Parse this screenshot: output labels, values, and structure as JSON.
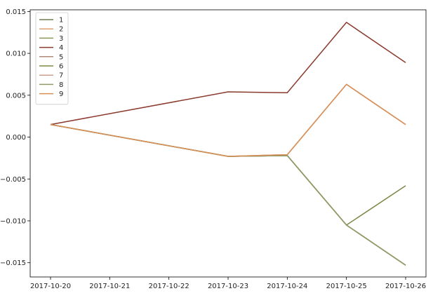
{
  "chart_data": {
    "type": "line",
    "title": "",
    "xlabel": "",
    "ylabel": "",
    "x": [
      "2017-10-20",
      "2017-10-21",
      "2017-10-22",
      "2017-10-23",
      "2017-10-24",
      "2017-10-25",
      "2017-10-26"
    ],
    "xlim": [
      "2017-10-20",
      "2017-10-26"
    ],
    "ylim": [
      -0.0167,
      0.0152
    ],
    "yticks": [
      -0.015,
      -0.01,
      -0.005,
      0.0,
      0.005,
      0.01,
      0.015
    ],
    "ytick_labels": [
      "−0.015",
      "−0.010",
      "−0.005",
      "0.000",
      "0.005",
      "0.010",
      "0.015"
    ],
    "grid": false,
    "legend_position": "top-left",
    "series": [
      {
        "name": "1",
        "color": "#6e7d4e",
        "points": [
          [
            "2017-10-20",
            0.0015
          ],
          [
            "2017-10-23",
            -0.0023
          ],
          [
            "2017-10-24",
            -0.0022
          ],
          [
            "2017-10-25",
            -0.0105
          ],
          [
            "2017-10-26",
            -0.0153
          ]
        ]
      },
      {
        "name": "2",
        "color": "#e0a070",
        "points": [
          [
            "2017-10-20",
            0.0015
          ],
          [
            "2017-10-23",
            -0.0023
          ],
          [
            "2017-10-24",
            -0.0021
          ],
          [
            "2017-10-25",
            0.0063
          ],
          [
            "2017-10-26",
            0.0015
          ]
        ]
      },
      {
        "name": "3",
        "color": "#8a9a5a",
        "points": [
          [
            "2017-10-20",
            0.0015
          ],
          [
            "2017-10-23",
            -0.0023
          ],
          [
            "2017-10-24",
            -0.0022
          ],
          [
            "2017-10-25",
            -0.0105
          ],
          [
            "2017-10-26",
            -0.0153
          ]
        ]
      },
      {
        "name": "4",
        "color": "#8b3a2e",
        "points": [
          [
            "2017-10-20",
            0.0015
          ],
          [
            "2017-10-23",
            0.0054
          ],
          [
            "2017-10-24",
            0.0053
          ],
          [
            "2017-10-25",
            0.0137
          ],
          [
            "2017-10-26",
            0.0089
          ]
        ]
      },
      {
        "name": "5",
        "color": "#b08a78",
        "points": [
          [
            "2017-10-20",
            0.0015
          ],
          [
            "2017-10-23",
            -0.0023
          ],
          [
            "2017-10-24",
            -0.0022
          ],
          [
            "2017-10-25",
            -0.0105
          ],
          [
            "2017-10-26",
            -0.0153
          ]
        ]
      },
      {
        "name": "6",
        "color": "#7a8845",
        "points": [
          [
            "2017-10-20",
            0.0015
          ],
          [
            "2017-10-23",
            -0.0023
          ],
          [
            "2017-10-24",
            -0.0022
          ],
          [
            "2017-10-25",
            -0.0105
          ],
          [
            "2017-10-26",
            -0.0058
          ]
        ]
      },
      {
        "name": "7",
        "color": "#c9a08a",
        "points": [
          [
            "2017-10-20",
            0.0015
          ],
          [
            "2017-10-23",
            -0.0023
          ],
          [
            "2017-10-24",
            -0.0021
          ],
          [
            "2017-10-25",
            0.0063
          ],
          [
            "2017-10-26",
            0.0015
          ]
        ]
      },
      {
        "name": "8",
        "color": "#8e9c68",
        "points": [
          [
            "2017-10-20",
            0.0015
          ],
          [
            "2017-10-23",
            -0.0023
          ],
          [
            "2017-10-24",
            -0.0022
          ],
          [
            "2017-10-25",
            -0.0105
          ],
          [
            "2017-10-26",
            -0.0153
          ]
        ]
      },
      {
        "name": "9",
        "color": "#d89058",
        "points": [
          [
            "2017-10-20",
            0.0015
          ],
          [
            "2017-10-23",
            -0.0023
          ],
          [
            "2017-10-24",
            -0.0021
          ],
          [
            "2017-10-25",
            0.0063
          ],
          [
            "2017-10-26",
            0.0015
          ]
        ]
      }
    ]
  }
}
